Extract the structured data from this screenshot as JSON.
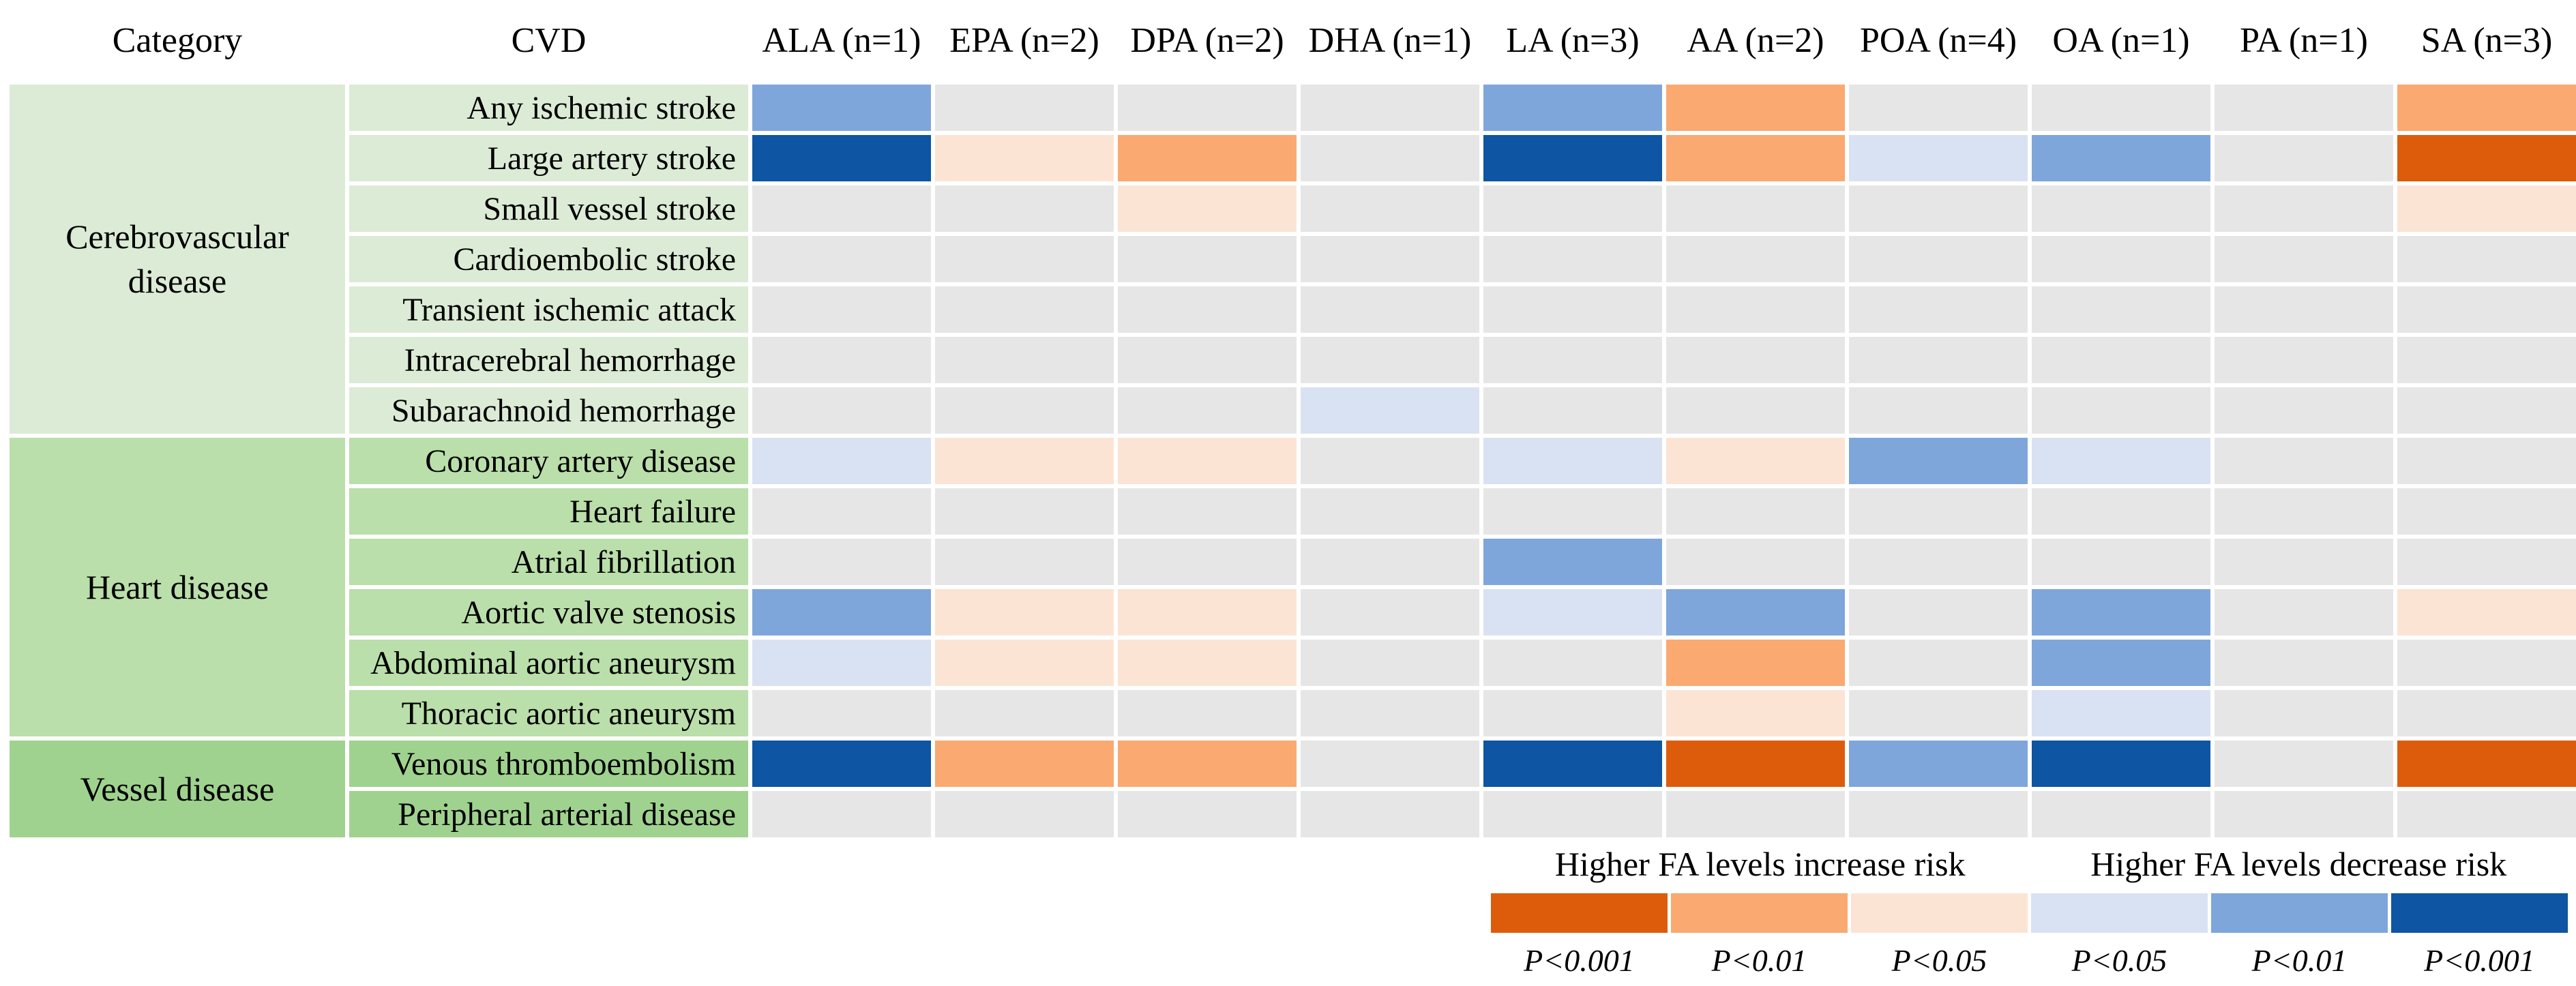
{
  "header": {
    "category": "Category",
    "cvd": "CVD"
  },
  "palette": {
    "ns": "#E7E6E6",
    "inc1": "#FCE4D5",
    "inc2": "#FAA971",
    "inc3": "#DD5C0C",
    "dec1": "#D9E2F3",
    "dec2": "#7EA6DB",
    "dec3": "#0E55A3"
  },
  "group_colors": {
    "cerebrovascular": "#DCEBD5",
    "heart": "#BADFAA",
    "vessel": "#A0D28F"
  },
  "chart_data": {
    "type": "heatmap",
    "x_labels": [
      "ALA (n=1)",
      "EPA (n=2)",
      "DPA (n=2)",
      "DHA (n=1)",
      "LA (n=3)",
      "AA (n=2)",
      "POA (n=4)",
      "OA (n=1)",
      "PA (n=1)",
      "SA (n=3)"
    ],
    "cell_encoding": {
      "ns": "not significant",
      "inc1": "higher FA increases risk P<0.05",
      "inc2": "higher FA increases risk P<0.01",
      "inc3": "higher FA increases risk P<0.001",
      "dec1": "higher FA decreases risk P<0.05",
      "dec2": "higher FA decreases risk P<0.01",
      "dec3": "higher FA decreases risk P<0.001"
    },
    "row_groups": [
      {
        "category": "Cerebrovascular disease",
        "color_key": "cerebrovascular",
        "rows": [
          {
            "label": "Any ischemic stroke",
            "cells": [
              "dec2",
              "ns",
              "ns",
              "ns",
              "dec2",
              "inc2",
              "ns",
              "ns",
              "ns",
              "inc2"
            ]
          },
          {
            "label": "Large artery stroke",
            "cells": [
              "dec3",
              "inc1",
              "inc2",
              "ns",
              "dec3",
              "inc2",
              "dec1",
              "dec2",
              "ns",
              "inc3"
            ]
          },
          {
            "label": "Small vessel stroke",
            "cells": [
              "ns",
              "ns",
              "inc1",
              "ns",
              "ns",
              "ns",
              "ns",
              "ns",
              "ns",
              "inc1"
            ]
          },
          {
            "label": "Cardioembolic stroke",
            "cells": [
              "ns",
              "ns",
              "ns",
              "ns",
              "ns",
              "ns",
              "ns",
              "ns",
              "ns",
              "ns"
            ]
          },
          {
            "label": "Transient ischemic attack",
            "cells": [
              "ns",
              "ns",
              "ns",
              "ns",
              "ns",
              "ns",
              "ns",
              "ns",
              "ns",
              "ns"
            ]
          },
          {
            "label": "Intracerebral hemorrhage",
            "cells": [
              "ns",
              "ns",
              "ns",
              "ns",
              "ns",
              "ns",
              "ns",
              "ns",
              "ns",
              "ns"
            ]
          },
          {
            "label": "Subarachnoid hemorrhage",
            "cells": [
              "ns",
              "ns",
              "ns",
              "dec1",
              "ns",
              "ns",
              "ns",
              "ns",
              "ns",
              "ns"
            ]
          }
        ]
      },
      {
        "category": "Heart disease",
        "color_key": "heart",
        "rows": [
          {
            "label": "Coronary artery disease",
            "cells": [
              "dec1",
              "inc1",
              "inc1",
              "ns",
              "dec1",
              "inc1",
              "dec2",
              "dec1",
              "ns",
              "ns"
            ]
          },
          {
            "label": "Heart failure",
            "cells": [
              "ns",
              "ns",
              "ns",
              "ns",
              "ns",
              "ns",
              "ns",
              "ns",
              "ns",
              "ns"
            ]
          },
          {
            "label": "Atrial fibrillation",
            "cells": [
              "ns",
              "ns",
              "ns",
              "ns",
              "dec2",
              "ns",
              "ns",
              "ns",
              "ns",
              "ns"
            ]
          },
          {
            "label": "Aortic valve stenosis",
            "cells": [
              "dec2",
              "inc1",
              "inc1",
              "ns",
              "dec1",
              "dec2",
              "ns",
              "dec2",
              "ns",
              "inc1"
            ]
          },
          {
            "label": "Abdominal aortic aneurysm",
            "cells": [
              "dec1",
              "inc1",
              "inc1",
              "ns",
              "ns",
              "inc2",
              "ns",
              "dec2",
              "ns",
              "ns"
            ]
          },
          {
            "label": "Thoracic aortic aneurysm",
            "cells": [
              "ns",
              "ns",
              "ns",
              "ns",
              "ns",
              "inc1",
              "ns",
              "dec1",
              "ns",
              "ns"
            ]
          }
        ]
      },
      {
        "category": "Vessel disease",
        "color_key": "vessel",
        "rows": [
          {
            "label": "Venous thromboembolism",
            "cells": [
              "dec3",
              "inc2",
              "inc2",
              "ns",
              "dec3",
              "inc3",
              "dec2",
              "dec3",
              "ns",
              "inc3"
            ]
          },
          {
            "label": "Peripheral arterial disease",
            "cells": [
              "ns",
              "ns",
              "ns",
              "ns",
              "ns",
              "ns",
              "ns",
              "ns",
              "ns",
              "ns"
            ]
          }
        ]
      }
    ]
  },
  "legend": {
    "increase_title": "Higher FA levels increase risk",
    "decrease_title": "Higher FA levels decrease risk",
    "swatches": [
      {
        "code": "inc3",
        "label": "P<0.001"
      },
      {
        "code": "inc2",
        "label": "P<0.01"
      },
      {
        "code": "inc1",
        "label": "P<0.05"
      },
      {
        "code": "dec1",
        "label": "P<0.05"
      },
      {
        "code": "dec2",
        "label": "P<0.01"
      },
      {
        "code": "dec3",
        "label": "P<0.001"
      }
    ]
  }
}
